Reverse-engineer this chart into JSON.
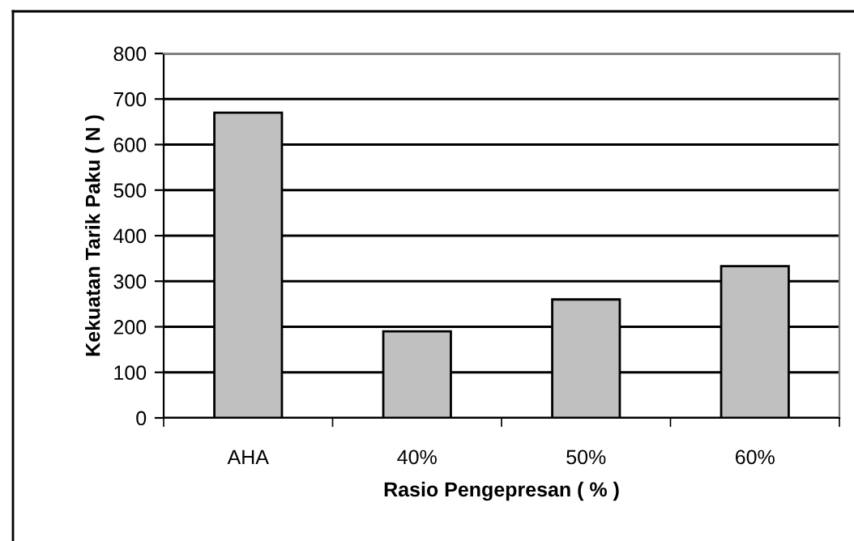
{
  "chart_data": {
    "type": "bar",
    "xlabel": "Rasio Pengepresan ( % )",
    "ylabel": "Kekuatan Tarik Paku ( N )",
    "categories": [
      "AHA",
      "40%",
      "50%",
      "60%"
    ],
    "values": [
      670,
      190,
      260,
      333
    ],
    "color": "#c0c0c0",
    "ylim": [
      0,
      800
    ],
    "yticks": [
      0,
      100,
      200,
      300,
      400,
      500,
      600,
      700,
      800
    ],
    "grid": "y"
  }
}
